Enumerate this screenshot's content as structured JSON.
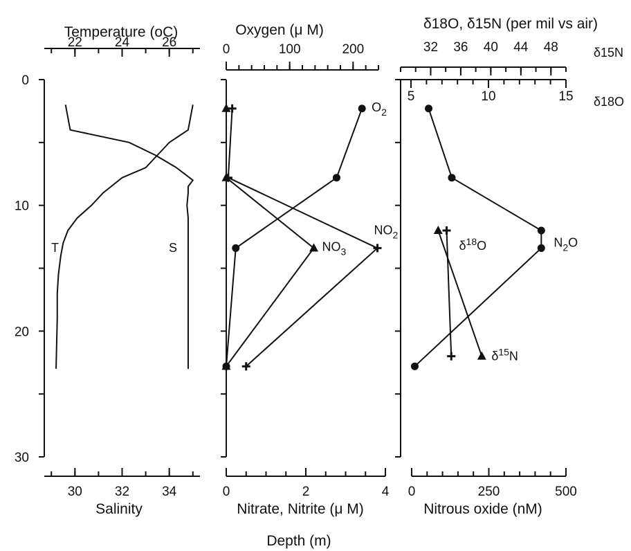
{
  "figure": {
    "common_ylabel": "Depth (m)",
    "depth_axis": {
      "range": [
        0,
        30
      ],
      "ticks": [
        0,
        10,
        20,
        30
      ],
      "reversed": true
    }
  },
  "chart_data": [
    {
      "type": "line",
      "panel": "physical",
      "top_axis": {
        "label": "Temperature (oC)",
        "ticks": [
          22,
          24,
          26
        ],
        "range": [
          20.7,
          27.3
        ]
      },
      "bottom_axis": {
        "label": "Salinity",
        "ticks": [
          30,
          32,
          34
        ],
        "range": [
          28.7,
          35.3
        ]
      },
      "series": [
        {
          "name": "T",
          "axis": "top",
          "points": [
            [
              27.0,
              2.0
            ],
            [
              26.8,
              4.0
            ],
            [
              26.0,
              5.0
            ],
            [
              25.5,
              6.0
            ],
            [
              25.0,
              7.0
            ],
            [
              24.0,
              7.8
            ],
            [
              23.2,
              9.0
            ],
            [
              22.7,
              10.0
            ],
            [
              22.1,
              11.0
            ],
            [
              21.7,
              12.0
            ],
            [
              21.5,
              13.0
            ],
            [
              21.4,
              14.0
            ],
            [
              21.3,
              15.5
            ],
            [
              21.25,
              17.0
            ],
            [
              21.25,
              19.0
            ],
            [
              21.2,
              23.0
            ]
          ]
        },
        {
          "name": "S",
          "axis": "bottom",
          "points": [
            [
              29.6,
              2.0
            ],
            [
              29.7,
              3.0
            ],
            [
              29.8,
              4.0
            ],
            [
              32.3,
              5.0
            ],
            [
              33.4,
              6.0
            ],
            [
              34.3,
              7.0
            ],
            [
              35.0,
              8.0
            ],
            [
              34.8,
              8.5
            ],
            [
              34.8,
              9.0
            ],
            [
              34.75,
              10.0
            ],
            [
              34.8,
              11.0
            ],
            [
              34.8,
              13.0
            ],
            [
              34.8,
              23.0
            ]
          ]
        }
      ]
    },
    {
      "type": "line",
      "panel": "chemistry",
      "top_axis": {
        "label": "Oxygen (μ M)",
        "ticks": [
          0,
          100,
          200
        ],
        "range": [
          0,
          240
        ]
      },
      "bottom_axis": {
        "label": "Nitrate, Nitrite (μ M)",
        "ticks": [
          0,
          2,
          4
        ],
        "range": [
          0,
          4.0
        ]
      },
      "series": [
        {
          "name": "O2",
          "axis": "top",
          "marker": "circle",
          "points": [
            [
              214,
              2.3
            ],
            [
              174,
              7.8
            ],
            [
              15,
              13.4
            ],
            [
              0,
              22.8
            ]
          ]
        },
        {
          "name": "NO3",
          "axis": "bottom",
          "marker": "triangle",
          "points": [
            [
              0.0,
              2.3
            ],
            [
              0.0,
              7.8
            ],
            [
              2.2,
              13.4
            ],
            [
              0.0,
              22.8
            ]
          ]
        },
        {
          "name": "NO2",
          "axis": "bottom",
          "marker": "plus",
          "points": [
            [
              0.15,
              2.3
            ],
            [
              0.05,
              7.8
            ],
            [
              3.8,
              13.4
            ],
            [
              0.5,
              22.8
            ]
          ]
        }
      ]
    },
    {
      "type": "line",
      "panel": "nitrous-oxide",
      "title": "δ18O, δ15N (per mil vs air)",
      "top_axes": [
        {
          "name": "δ15N",
          "ticks": [
            32,
            36,
            40,
            44,
            48
          ],
          "range": [
            28,
            50
          ]
        },
        {
          "name": "δ18O",
          "ticks": [
            5,
            10,
            15
          ],
          "range": [
            5,
            15
          ]
        }
      ],
      "bottom_axis": {
        "label": "Nitrous oxide (nM)",
        "ticks": [
          0,
          250,
          500
        ],
        "range": [
          0,
          500
        ]
      },
      "series": [
        {
          "name": "N2O",
          "axis": "bottom",
          "marker": "circle",
          "points": [
            [
              55,
              2.3
            ],
            [
              130,
              7.8
            ],
            [
              420,
              12.0
            ],
            [
              420,
              13.4
            ],
            [
              10,
              22.8
            ]
          ]
        },
        {
          "name": "δ18O",
          "axis": "d18O",
          "marker": "plus",
          "points": [
            [
              7.3,
              12.0
            ],
            [
              7.6,
              22.0
            ]
          ]
        },
        {
          "name": "δ15N",
          "axis": "d15N",
          "marker": "triangle",
          "points": [
            [
              33.0,
              12.0
            ],
            [
              38.8,
              22.0
            ]
          ]
        }
      ]
    }
  ]
}
